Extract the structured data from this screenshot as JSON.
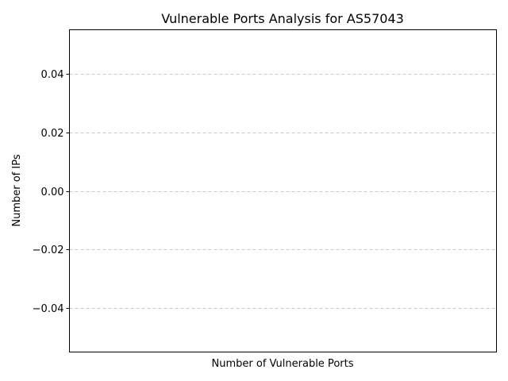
{
  "chart_data": {
    "type": "bar",
    "title": "Vulnerable Ports Analysis for AS57043",
    "xlabel": "Number of Vulnerable Ports",
    "ylabel": "Number of IPs",
    "categories": [],
    "values": [],
    "ylim": [
      -0.055,
      0.055
    ],
    "yticks": [
      -0.04,
      -0.02,
      0.0,
      0.02,
      0.04
    ],
    "ytick_labels": [
      "−0.04",
      "−0.02",
      "0.00",
      "0.02",
      "0.04"
    ],
    "grid": {
      "axis": "y",
      "style": "dashed",
      "color": "#c8c8c8"
    }
  }
}
